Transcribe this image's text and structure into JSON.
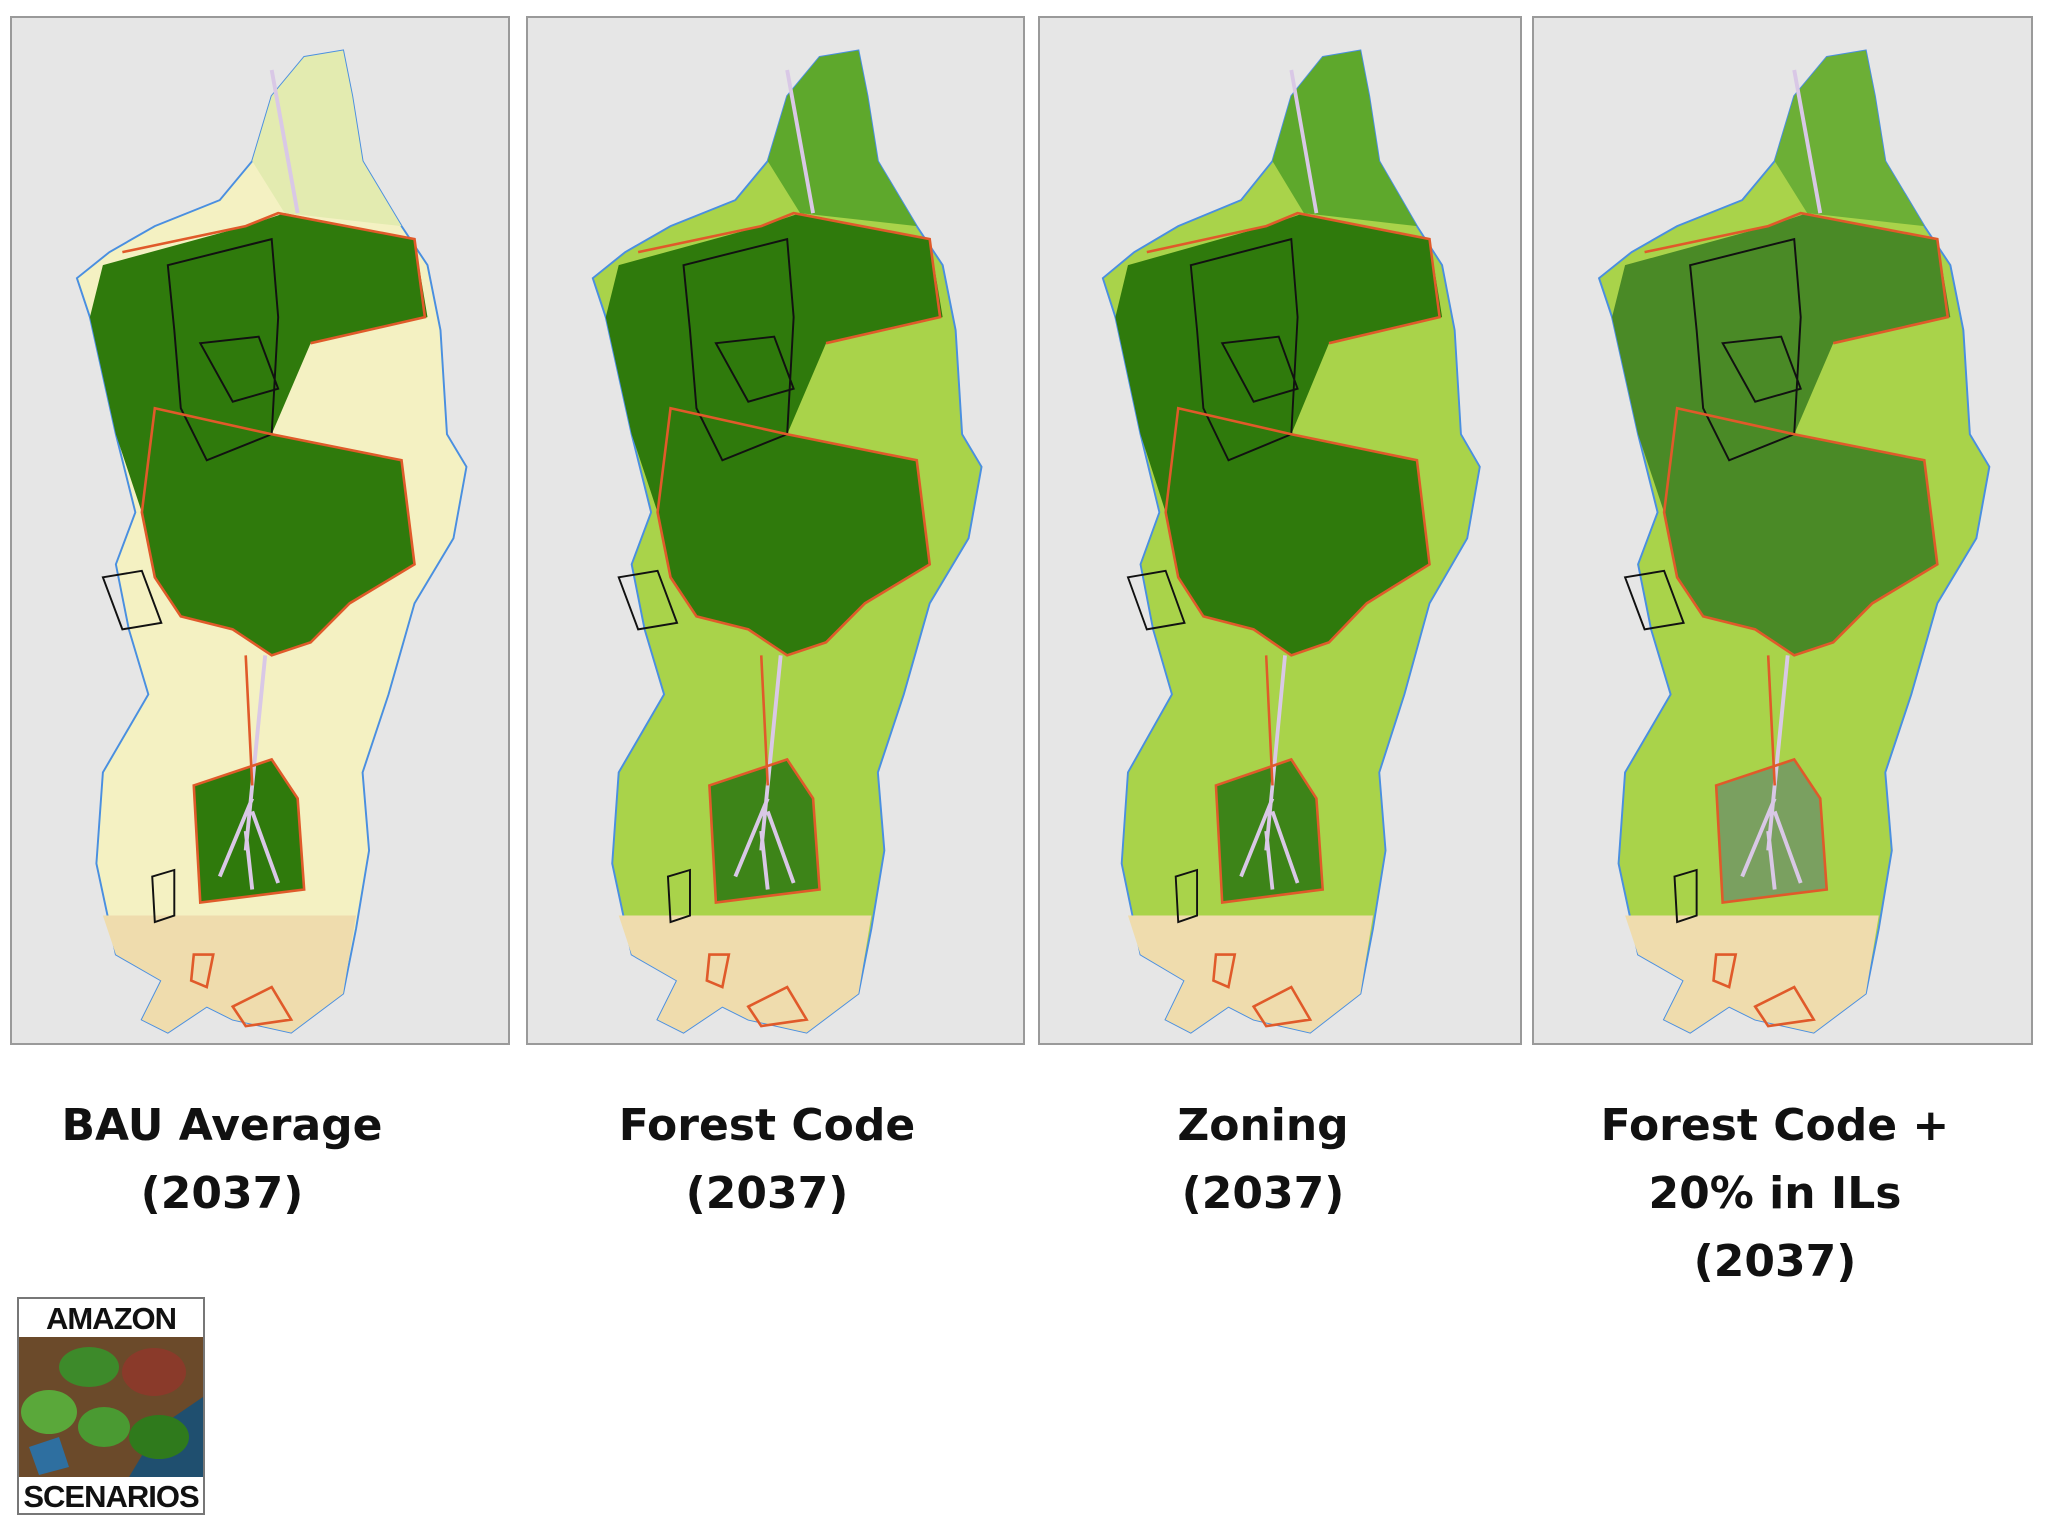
{
  "panels": [
    {
      "caption": [
        "BAU Average",
        "(2037)"
      ]
    },
    {
      "caption": [
        "Forest Code",
        "(2037)"
      ]
    },
    {
      "caption": [
        "Zoning",
        "(2037)"
      ]
    },
    {
      "caption": [
        "Forest Code +",
        "20% in ILs",
        "(2037)"
      ]
    }
  ],
  "logo": {
    "top": "AMAZON",
    "bottom": "SCENARIOS"
  }
}
